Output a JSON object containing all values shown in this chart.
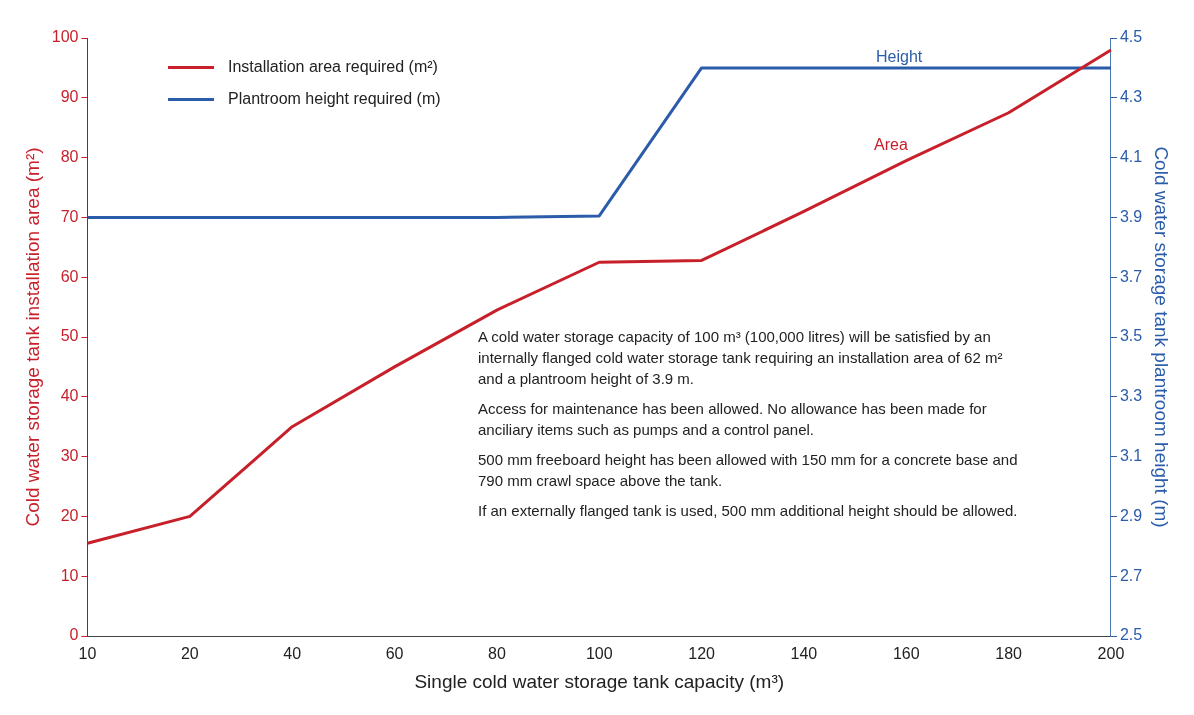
{
  "chart_data": {
    "type": "line",
    "xlabel": "Single cold water storage tank capacity (m³)",
    "ylabel": "Cold water storage tank installation area (m²)",
    "y2label": "Cold water storage tank plantroom height (m)",
    "categories": [
      "10",
      "20",
      "40",
      "60",
      "80",
      "100",
      "120",
      "140",
      "160",
      "180",
      "200"
    ],
    "series": [
      {
        "name": "Installation area required (m²)",
        "color": "#c8202a",
        "values": [
          15.5,
          20,
          35,
          45,
          54.5,
          62.5,
          62.8,
          71,
          79.5,
          87.5,
          98
        ]
      },
      {
        "name": "Plantroom height required (m)",
        "color": "#2a5caa",
        "axis": "y2",
        "values": [
          3.9,
          3.9,
          3.9,
          3.9,
          3.9,
          3.905,
          4.4,
          4.4,
          4.4,
          4.4,
          4.4
        ]
      }
    ],
    "ylim": [
      0,
      100
    ],
    "yticks": [
      0,
      10,
      20,
      30,
      40,
      50,
      60,
      70,
      80,
      90,
      100
    ],
    "y2lim": [
      2.5,
      4.5
    ],
    "y2ticks": [
      2.5,
      2.7,
      2.9,
      3.1,
      3.3,
      3.5,
      3.7,
      3.9,
      4.1,
      4.3,
      4.5
    ],
    "legend": "top left",
    "grid": false,
    "marker": "none",
    "line_style": "solid",
    "annotations": [
      "Height",
      "Area",
      "A cold water storage capacity of 100 m³ (100,000 litres) will be satisfied by an internally flanged cold water storage tank requiring an installation area of 62 m² and a plantroom height of 3.9 m.",
      "Access for maintenance has been allowed.  No allowance  has been made for anciliary items such as pumps and a control panel.",
      "500 mm freeboard height has been allowed with 150 mm for a concrete base and 790 mm crawl space above the tank.",
      "If an externally flanged tank is used, 500 mm additional height should be allowed."
    ]
  }
}
